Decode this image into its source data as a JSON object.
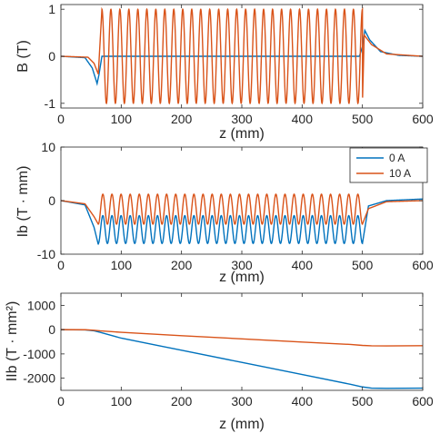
{
  "chart_data": [
    {
      "type": "line",
      "title": "",
      "xlabel": "z (mm)",
      "ylabel": "B (T)",
      "xlim": [
        0,
        600
      ],
      "ylim": [
        -1.1,
        1.1
      ],
      "xticks": [
        0,
        100,
        200,
        300,
        400,
        500,
        600
      ],
      "yticks": [
        -1,
        0,
        1
      ],
      "xtick_labels": [
        "0",
        "100",
        "200",
        "300",
        "400",
        "500",
        "600"
      ],
      "ytick_labels": [
        "-1",
        "0",
        "1"
      ],
      "grid": false,
      "series": [
        {
          "color": "#0072BD",
          "description_points": [
            [
              0,
              0
            ],
            [
              40,
              -0.03
            ],
            [
              52,
              -0.25
            ],
            [
              60,
              -0.58
            ],
            [
              63,
              -0.4
            ],
            [
              68,
              0
            ],
            [
              495,
              0
            ],
            [
              500,
              0.2
            ],
            [
              504,
              0.55
            ],
            [
              512,
              0.35
            ],
            [
              530,
              0.1
            ],
            [
              560,
              0.02
            ],
            [
              600,
              0
            ]
          ]
        },
        {
          "color": "#D95319",
          "description_points": [
            [
              0,
              0
            ],
            [
              45,
              -0.02
            ],
            [
              55,
              -0.15
            ],
            [
              62,
              -0.38
            ],
            [
              68,
              1.0
            ],
            [
              500,
              -1.0
            ],
            [
              503,
              0.45
            ],
            [
              515,
              0.25
            ],
            [
              540,
              0.05
            ],
            [
              600,
              0
            ]
          ],
          "oscillation": {
            "z_start": 68,
            "z_end": 500,
            "amplitude": 1.0,
            "periods": 29
          }
        }
      ]
    },
    {
      "type": "line",
      "title": "",
      "xlabel": "z (mm)",
      "ylabel": "Ib (T · mm)",
      "xlim": [
        0,
        600
      ],
      "ylim": [
        -10,
        10
      ],
      "xticks": [
        0,
        100,
        200,
        300,
        400,
        500,
        600
      ],
      "yticks": [
        -10,
        0,
        10
      ],
      "xtick_labels": [
        "0",
        "100",
        "200",
        "300",
        "400",
        "500",
        "600"
      ],
      "ytick_labels": [
        "-10",
        "0",
        "10"
      ],
      "grid": false,
      "legend": {
        "position": "top-right"
      },
      "series": [
        {
          "name": "0 A",
          "color": "#0072BD",
          "centerline": -5.4,
          "amplitude": 2.6,
          "description_points": [
            [
              0,
              0
            ],
            [
              40,
              -0.8
            ],
            [
              55,
              -5
            ],
            [
              62,
              -8.2
            ],
            [
              500,
              -8.0
            ],
            [
              510,
              -1.0
            ],
            [
              540,
              0
            ],
            [
              600,
              0.3
            ]
          ]
        },
        {
          "name": "10 A",
          "color": "#D95319",
          "centerline": -1.6,
          "amplitude": 2.8,
          "description_points": [
            [
              0,
              0
            ],
            [
              40,
              -0.6
            ],
            [
              55,
              -3
            ],
            [
              62,
              -4.4
            ],
            [
              500,
              -4.4
            ],
            [
              510,
              -1.5
            ],
            [
              540,
              -0.2
            ],
            [
              600,
              0
            ]
          ]
        }
      ]
    },
    {
      "type": "line",
      "title": "",
      "xlabel": "z (mm)",
      "ylabel": "IIb (T · mm²)",
      "xlim": [
        0,
        600
      ],
      "ylim": [
        -2500,
        1500
      ],
      "xticks": [
        0,
        100,
        200,
        300,
        400,
        500,
        600
      ],
      "yticks": [
        -2000,
        -1000,
        0,
        1000
      ],
      "xtick_labels": [
        "0",
        "100",
        "200",
        "300",
        "400",
        "500",
        "600"
      ],
      "ytick_labels": [
        "-2000",
        "-1000",
        "0",
        "1000"
      ],
      "grid": false,
      "series": [
        {
          "color": "#0072BD",
          "x": [
            0,
            40,
            55,
            65,
            100,
            200,
            300,
            400,
            480,
            500,
            515,
            540,
            600
          ],
          "y": [
            0,
            -10,
            -50,
            -110,
            -350,
            -850,
            -1350,
            -1850,
            -2250,
            -2360,
            -2410,
            -2420,
            -2410
          ]
        },
        {
          "color": "#D95319",
          "x": [
            0,
            40,
            55,
            65,
            100,
            200,
            300,
            400,
            480,
            500,
            515,
            540,
            600
          ],
          "y": [
            0,
            -5,
            -25,
            -50,
            -110,
            -250,
            -380,
            -510,
            -610,
            -650,
            -665,
            -670,
            -660
          ]
        }
      ]
    }
  ]
}
